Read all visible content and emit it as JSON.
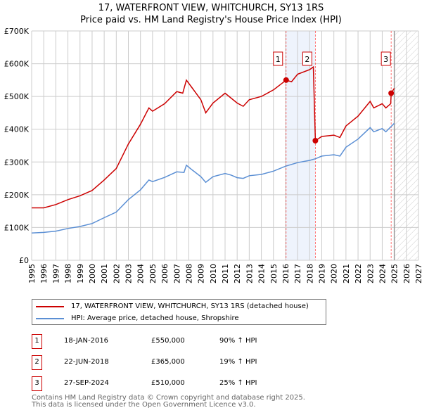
{
  "title": "17, WATERFRONT VIEW, WHITCHURCH, SY13 1RS",
  "subtitle": "Price paid vs. HM Land Registry's House Price Index (HPI)",
  "chart_data": {
    "type": "line",
    "title": "17, WATERFRONT VIEW, WHITCHURCH, SY13 1RS — Price paid vs. HM Land Registry's House Price Index (HPI)",
    "xlim": [
      1995,
      2027
    ],
    "ylim": [
      0,
      700000
    ],
    "x_ticks": [
      "1995",
      "1996",
      "1997",
      "1998",
      "1999",
      "2000",
      "2001",
      "2002",
      "2003",
      "2004",
      "2005",
      "2006",
      "2007",
      "2008",
      "2009",
      "2010",
      "2011",
      "2012",
      "2013",
      "2014",
      "2015",
      "2016",
      "2017",
      "2018",
      "2019",
      "2020",
      "2021",
      "2022",
      "2023",
      "2024",
      "2025",
      "2026",
      "2027"
    ],
    "y_ticks": [
      {
        "v": 0,
        "label": "£0"
      },
      {
        "v": 100000,
        "label": "£100K"
      },
      {
        "v": 200000,
        "label": "£200K"
      },
      {
        "v": 300000,
        "label": "£300K"
      },
      {
        "v": 400000,
        "label": "£400K"
      },
      {
        "v": 500000,
        "label": "£500K"
      },
      {
        "v": 600000,
        "label": "£600K"
      },
      {
        "v": 700000,
        "label": "£700K"
      }
    ],
    "grid": true,
    "shaded_range": [
      2016.05,
      2018.47
    ],
    "forecast_from": 2025.0,
    "series": [
      {
        "name": "17, WATERFRONT VIEW, WHITCHURCH, SY13 1RS (detached house)",
        "color": "#cc0000",
        "x": [
          1995,
          1996,
          1997,
          1998,
          1999,
          2000,
          2001,
          2002,
          2003,
          2004,
          2004.7,
          2005,
          2006,
          2007,
          2007.5,
          2007.8,
          2008.3,
          2009,
          2009.4,
          2010,
          2011,
          2011.5,
          2012,
          2012.5,
          2013,
          2014,
          2015,
          2016.05,
          2016.5,
          2017,
          2018,
          2018.3,
          2018.47,
          2019,
          2020,
          2020.5,
          2021,
          2022,
          2023,
          2023.3,
          2024,
          2024.3,
          2024.7,
          2024.74,
          2025
        ],
        "y": [
          160000,
          160000,
          170000,
          185000,
          197000,
          213000,
          245000,
          280000,
          355000,
          415000,
          465000,
          455000,
          478000,
          515000,
          510000,
          550000,
          525000,
          490000,
          450000,
          480000,
          510000,
          495000,
          480000,
          470000,
          490000,
          500000,
          520000,
          550000,
          545000,
          568000,
          582000,
          590000,
          365000,
          378000,
          382000,
          375000,
          410000,
          440000,
          485000,
          465000,
          478000,
          465000,
          478000,
          510000,
          525000
        ]
      },
      {
        "name": "HPI: Average price, detached house, Shropshire",
        "color": "#5b8fd4",
        "x": [
          1995,
          1996,
          1997,
          1998,
          1999,
          2000,
          2001,
          2002,
          2003,
          2004,
          2004.7,
          2005,
          2006,
          2007,
          2007.6,
          2007.8,
          2008.3,
          2009,
          2009.4,
          2010,
          2011,
          2011.5,
          2012,
          2012.5,
          2013,
          2014,
          2015,
          2016,
          2017,
          2018,
          2018.5,
          2019,
          2020,
          2020.5,
          2021,
          2022,
          2023,
          2023.3,
          2024,
          2024.3,
          2025
        ],
        "y": [
          83000,
          85000,
          89000,
          97000,
          103000,
          112000,
          130000,
          147000,
          185000,
          215000,
          245000,
          240000,
          253000,
          270000,
          268000,
          290000,
          275000,
          255000,
          238000,
          255000,
          265000,
          260000,
          252000,
          250000,
          258000,
          262000,
          272000,
          287000,
          298000,
          305000,
          310000,
          318000,
          322000,
          318000,
          345000,
          370000,
          405000,
          392000,
          402000,
          392000,
          418000
        ]
      }
    ],
    "sales": [
      {
        "id": "1",
        "x": 2016.05,
        "price": 550000,
        "date": "18-JAN-2016",
        "price_label": "£550,000",
        "hpi": "90% ↑ HPI"
      },
      {
        "id": "2",
        "x": 2018.47,
        "price": 365000,
        "date": "22-JUN-2018",
        "price_label": "£365,000",
        "hpi": "19% ↑ HPI"
      },
      {
        "id": "3",
        "x": 2024.74,
        "price": 510000,
        "date": "27-SEP-2024",
        "price_label": "£510,000",
        "hpi": "25% ↑ HPI"
      }
    ]
  },
  "legend": {
    "property": "17, WATERFRONT VIEW, WHITCHURCH, SY13 1RS (detached house)",
    "hpi": "HPI: Average price, detached house, Shropshire"
  },
  "footer": {
    "line1": "Contains HM Land Registry data © Crown copyright and database right 2025.",
    "line2": "This data is licensed under the Open Government Licence v3.0."
  }
}
